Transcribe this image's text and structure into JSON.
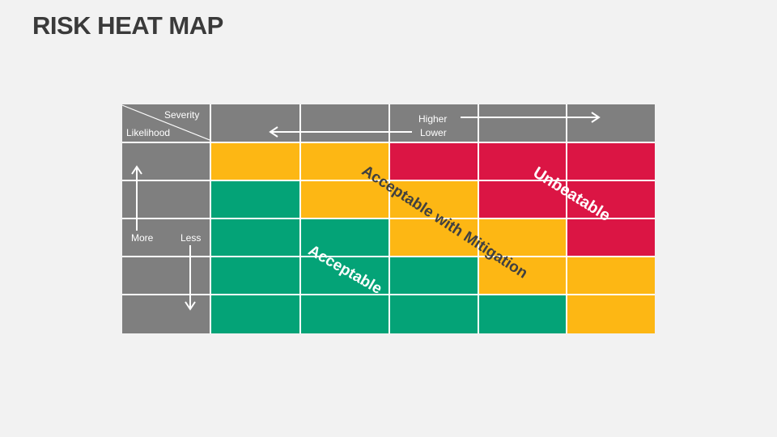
{
  "title": "RISK HEAT MAP",
  "corner": {
    "top_label": "Severity",
    "bottom_label": "Likelihood"
  },
  "severity_axis": {
    "higher_label": "Higher",
    "lower_label": "Lower"
  },
  "likelihood_axis": {
    "more_label": "More",
    "less_label": "Less"
  },
  "zones": {
    "unbeatable": "Unbeatable",
    "mitigation": "Acceptable with Mitigation",
    "acceptable": "Acceptable"
  },
  "colors": {
    "header": "#7f7f7f",
    "green": "#04a377",
    "amber": "#fdb714",
    "red": "#db1544",
    "zone_text_dark": "#404040",
    "zone_text_light": "#ffffff"
  },
  "matrix": [
    [
      "amber",
      "amber",
      "red",
      "red",
      "red"
    ],
    [
      "green",
      "amber",
      "amber",
      "red",
      "red"
    ],
    [
      "green",
      "green",
      "amber",
      "amber",
      "red"
    ],
    [
      "green",
      "green",
      "green",
      "amber",
      "amber"
    ],
    [
      "green",
      "green",
      "green",
      "green",
      "amber"
    ]
  ]
}
